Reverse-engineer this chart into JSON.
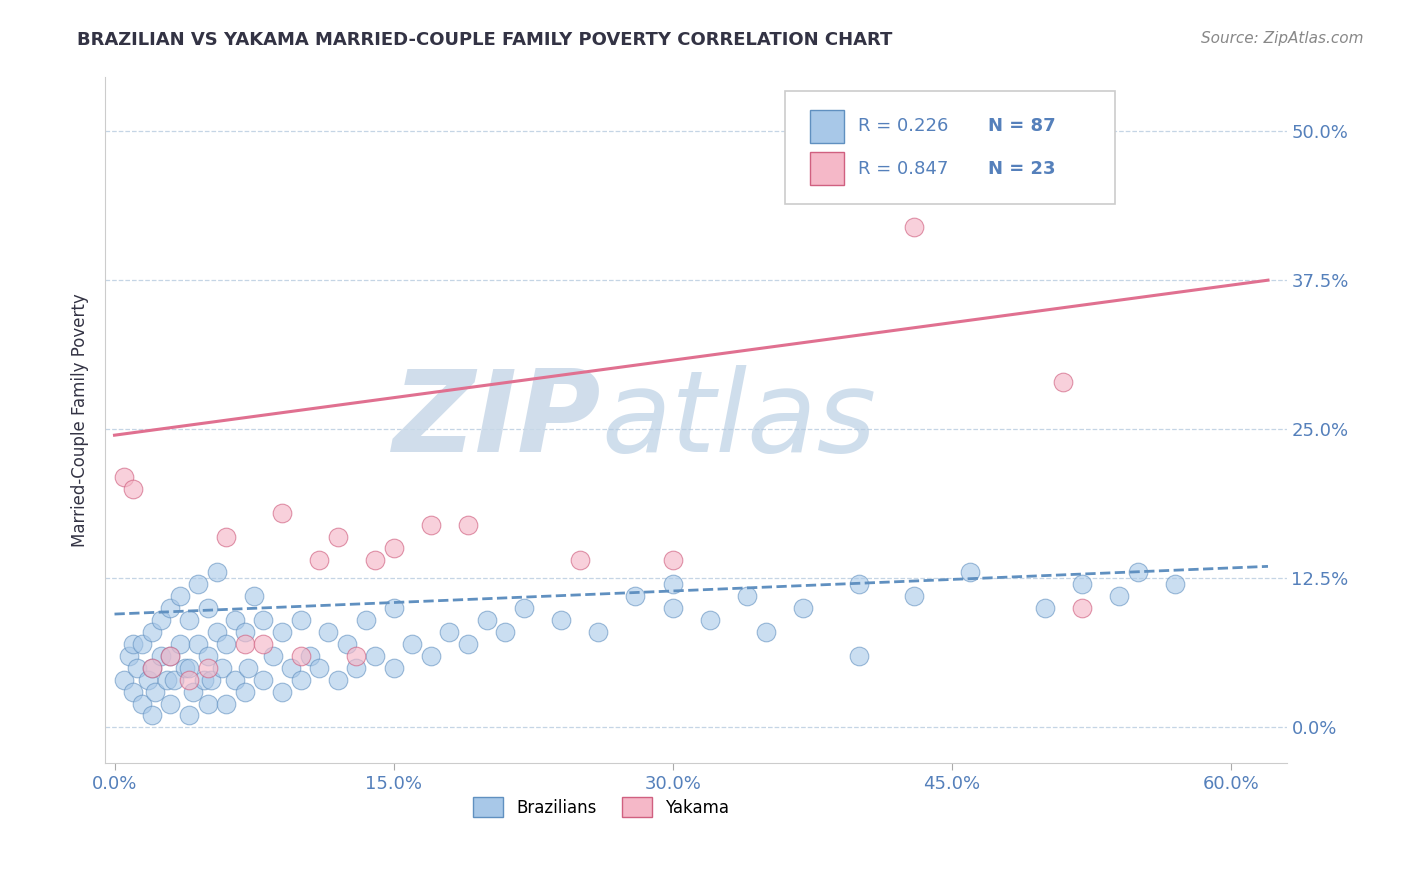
{
  "title": "BRAZILIAN VS YAKAMA MARRIED-COUPLE FAMILY POVERTY CORRELATION CHART",
  "source_text": "Source: ZipAtlas.com",
  "ylabel": "Married-Couple Family Poverty",
  "x_tick_labels": [
    "0.0%",
    "15.0%",
    "30.0%",
    "45.0%",
    "60.0%"
  ],
  "x_tick_vals": [
    0.0,
    0.15,
    0.3,
    0.45,
    0.6
  ],
  "y_tick_labels": [
    "0.0%",
    "12.5%",
    "25.0%",
    "37.5%",
    "50.0%"
  ],
  "y_tick_vals": [
    0.0,
    0.125,
    0.25,
    0.375,
    0.5
  ],
  "xlim": [
    -0.005,
    0.63
  ],
  "ylim": [
    -0.03,
    0.545
  ],
  "watermark_line1": "ZIP",
  "watermark_line2": "atlas",
  "brazilians_color": "#a8c8e8",
  "brazilians_edge_color": "#6090c0",
  "yakama_color": "#f5b8c8",
  "yakama_edge_color": "#d06080",
  "brazil_trend_color": "#6090c0",
  "yakama_trend_color": "#e07090",
  "brazil_trend_x": [
    0.0,
    0.62
  ],
  "brazil_trend_y": [
    0.095,
    0.135
  ],
  "yakama_trend_x": [
    0.0,
    0.62
  ],
  "yakama_trend_y": [
    0.245,
    0.375
  ],
  "title_color": "#333344",
  "r_color": "#5580bb",
  "n_color": "#e05020",
  "axis_tick_color": "#5580bb",
  "grid_color": "#c5d5e5",
  "background_color": "#ffffff",
  "source_color": "#888888",
  "legend_box_color": "#cccccc",
  "brazil_scatter_x": [
    0.005,
    0.008,
    0.01,
    0.01,
    0.012,
    0.015,
    0.015,
    0.018,
    0.02,
    0.02,
    0.02,
    0.022,
    0.025,
    0.025,
    0.028,
    0.03,
    0.03,
    0.03,
    0.032,
    0.035,
    0.035,
    0.038,
    0.04,
    0.04,
    0.04,
    0.042,
    0.045,
    0.045,
    0.048,
    0.05,
    0.05,
    0.05,
    0.052,
    0.055,
    0.055,
    0.058,
    0.06,
    0.06,
    0.065,
    0.065,
    0.07,
    0.07,
    0.072,
    0.075,
    0.08,
    0.08,
    0.085,
    0.09,
    0.09,
    0.095,
    0.1,
    0.1,
    0.105,
    0.11,
    0.115,
    0.12,
    0.125,
    0.13,
    0.135,
    0.14,
    0.15,
    0.15,
    0.16,
    0.17,
    0.18,
    0.19,
    0.2,
    0.21,
    0.22,
    0.24,
    0.26,
    0.28,
    0.3,
    0.32,
    0.34,
    0.37,
    0.4,
    0.43,
    0.46,
    0.5,
    0.52,
    0.54,
    0.55,
    0.57,
    0.4,
    0.35,
    0.3
  ],
  "brazil_scatter_y": [
    0.04,
    0.06,
    0.03,
    0.07,
    0.05,
    0.02,
    0.07,
    0.04,
    0.01,
    0.05,
    0.08,
    0.03,
    0.06,
    0.09,
    0.04,
    0.02,
    0.06,
    0.1,
    0.04,
    0.07,
    0.11,
    0.05,
    0.01,
    0.05,
    0.09,
    0.03,
    0.07,
    0.12,
    0.04,
    0.02,
    0.06,
    0.1,
    0.04,
    0.08,
    0.13,
    0.05,
    0.02,
    0.07,
    0.04,
    0.09,
    0.03,
    0.08,
    0.05,
    0.11,
    0.04,
    0.09,
    0.06,
    0.03,
    0.08,
    0.05,
    0.04,
    0.09,
    0.06,
    0.05,
    0.08,
    0.04,
    0.07,
    0.05,
    0.09,
    0.06,
    0.05,
    0.1,
    0.07,
    0.06,
    0.08,
    0.07,
    0.09,
    0.08,
    0.1,
    0.09,
    0.08,
    0.11,
    0.1,
    0.09,
    0.11,
    0.1,
    0.12,
    0.11,
    0.13,
    0.1,
    0.12,
    0.11,
    0.13,
    0.12,
    0.06,
    0.08,
    0.12
  ],
  "yakama_scatter_x": [
    0.005,
    0.01,
    0.02,
    0.03,
    0.04,
    0.05,
    0.06,
    0.07,
    0.08,
    0.09,
    0.1,
    0.11,
    0.12,
    0.13,
    0.14,
    0.15,
    0.17,
    0.19,
    0.25,
    0.3,
    0.43,
    0.51,
    0.52
  ],
  "yakama_scatter_y": [
    0.21,
    0.2,
    0.05,
    0.06,
    0.04,
    0.05,
    0.16,
    0.07,
    0.07,
    0.18,
    0.06,
    0.14,
    0.16,
    0.06,
    0.14,
    0.15,
    0.17,
    0.17,
    0.14,
    0.14,
    0.42,
    0.29,
    0.1
  ]
}
